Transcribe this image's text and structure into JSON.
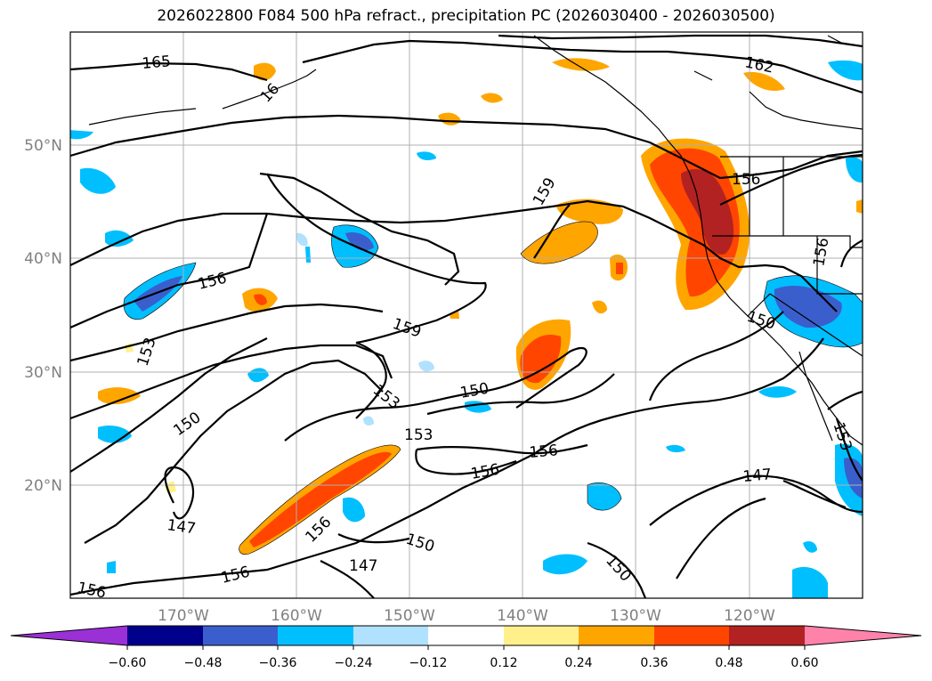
{
  "title": "2026022800 F084 500 hPa refract., precipitation PC (2026030400 - 2026030500)",
  "map": {
    "lat_labels": [
      "50°N",
      "40°N",
      "30°N",
      "20°N"
    ],
    "lon_labels": [
      "170°W",
      "160°W",
      "150°W",
      "140°W",
      "130°W",
      "120°W"
    ],
    "contour_labels": [
      "165",
      "162",
      "16",
      "159",
      "156",
      "156",
      "156",
      "159",
      "153",
      "153",
      "150",
      "153",
      "150",
      "150",
      "156",
      "156",
      "147",
      "156",
      "156",
      "150",
      "147",
      "150",
      "156",
      "147",
      "153",
      "156"
    ]
  },
  "colorbar": {
    "ticks": [
      "−0.60",
      "−0.48",
      "−0.36",
      "−0.24",
      "−0.12",
      "0.12",
      "0.24",
      "0.36",
      "0.48",
      "0.60"
    ],
    "colors": [
      "#9b30d6",
      "#00008b",
      "#3a5fcd",
      "#00bfff",
      "#b0e2ff",
      "#ffffff",
      "#fff08c",
      "#ffa500",
      "#ff4500",
      "#b22222",
      "#ff82ab"
    ]
  }
}
